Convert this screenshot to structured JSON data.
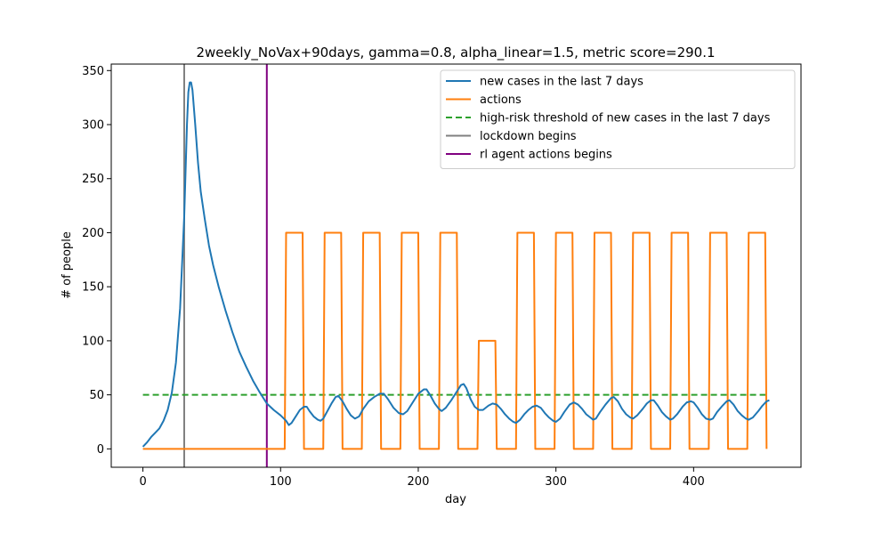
{
  "chart_data": {
    "type": "line",
    "title": "2weekly_NoVax+90days, gamma=0.8, alpha_linear=1.5, metric score=290.1",
    "xlabel": "day",
    "ylabel": "# of people",
    "xlim": [
      -23,
      478
    ],
    "ylim": [
      -17,
      356
    ],
    "xticks": [
      0,
      100,
      200,
      300,
      400
    ],
    "yticks": [
      0,
      50,
      100,
      150,
      200,
      250,
      300,
      350
    ],
    "grid": false,
    "legend_position": "upper-right",
    "series": [
      {
        "name": "new cases in the last 7 days",
        "color": "#1f77b4",
        "style": "solid",
        "points": [
          [
            0,
            2
          ],
          [
            3,
            6
          ],
          [
            6,
            11
          ],
          [
            9,
            15
          ],
          [
            12,
            19
          ],
          [
            15,
            26
          ],
          [
            18,
            36
          ],
          [
            21,
            52
          ],
          [
            24,
            80
          ],
          [
            27,
            130
          ],
          [
            30,
            215
          ],
          [
            32,
            300
          ],
          [
            33,
            330
          ],
          [
            34,
            339
          ],
          [
            35,
            339
          ],
          [
            36,
            332
          ],
          [
            38,
            300
          ],
          [
            40,
            265
          ],
          [
            42,
            238
          ],
          [
            45,
            212
          ],
          [
            48,
            188
          ],
          [
            51,
            170
          ],
          [
            55,
            150
          ],
          [
            60,
            128
          ],
          [
            65,
            108
          ],
          [
            70,
            90
          ],
          [
            75,
            76
          ],
          [
            80,
            63
          ],
          [
            85,
            52
          ],
          [
            90,
            42
          ],
          [
            95,
            36
          ],
          [
            100,
            31
          ],
          [
            104,
            26
          ],
          [
            106,
            22
          ],
          [
            108,
            24
          ],
          [
            111,
            30
          ],
          [
            114,
            36
          ],
          [
            117,
            39
          ],
          [
            119,
            39
          ],
          [
            121,
            35
          ],
          [
            124,
            30
          ],
          [
            127,
            27
          ],
          [
            129,
            26
          ],
          [
            131,
            28
          ],
          [
            134,
            35
          ],
          [
            137,
            42
          ],
          [
            140,
            48
          ],
          [
            142,
            49
          ],
          [
            145,
            44
          ],
          [
            148,
            37
          ],
          [
            151,
            31
          ],
          [
            154,
            28
          ],
          [
            157,
            30
          ],
          [
            160,
            37
          ],
          [
            164,
            44
          ],
          [
            168,
            48
          ],
          [
            172,
            51
          ],
          [
            175,
            51
          ],
          [
            178,
            46
          ],
          [
            182,
            38
          ],
          [
            186,
            33
          ],
          [
            189,
            32
          ],
          [
            192,
            35
          ],
          [
            196,
            43
          ],
          [
            200,
            51
          ],
          [
            204,
            55
          ],
          [
            206,
            55
          ],
          [
            209,
            49
          ],
          [
            212,
            42
          ],
          [
            215,
            37
          ],
          [
            217,
            35
          ],
          [
            220,
            38
          ],
          [
            224,
            45
          ],
          [
            228,
            53
          ],
          [
            231,
            59
          ],
          [
            233,
            60
          ],
          [
            235,
            56
          ],
          [
            238,
            46
          ],
          [
            241,
            39
          ],
          [
            244,
            36
          ],
          [
            247,
            36
          ],
          [
            251,
            40
          ],
          [
            254,
            42
          ],
          [
            257,
            41
          ],
          [
            260,
            37
          ],
          [
            263,
            32
          ],
          [
            266,
            28
          ],
          [
            269,
            25
          ],
          [
            271,
            24
          ],
          [
            274,
            27
          ],
          [
            277,
            32
          ],
          [
            280,
            36
          ],
          [
            283,
            39
          ],
          [
            286,
            40
          ],
          [
            289,
            38
          ],
          [
            292,
            33
          ],
          [
            295,
            29
          ],
          [
            298,
            26
          ],
          [
            300,
            25
          ],
          [
            303,
            28
          ],
          [
            306,
            34
          ],
          [
            310,
            41
          ],
          [
            313,
            43
          ],
          [
            316,
            41
          ],
          [
            319,
            37
          ],
          [
            322,
            32
          ],
          [
            325,
            29
          ],
          [
            327,
            27
          ],
          [
            329,
            28
          ],
          [
            332,
            34
          ],
          [
            336,
            41
          ],
          [
            340,
            47
          ],
          [
            342,
            48
          ],
          [
            345,
            44
          ],
          [
            348,
            37
          ],
          [
            351,
            32
          ],
          [
            354,
            29
          ],
          [
            356,
            28
          ],
          [
            359,
            31
          ],
          [
            363,
            37
          ],
          [
            366,
            42
          ],
          [
            369,
            45
          ],
          [
            371,
            45
          ],
          [
            374,
            40
          ],
          [
            377,
            34
          ],
          [
            380,
            30
          ],
          [
            383,
            27
          ],
          [
            385,
            28
          ],
          [
            388,
            32
          ],
          [
            392,
            39
          ],
          [
            395,
            43
          ],
          [
            398,
            44
          ],
          [
            400,
            43
          ],
          [
            403,
            38
          ],
          [
            406,
            32
          ],
          [
            409,
            28
          ],
          [
            412,
            27
          ],
          [
            414,
            28
          ],
          [
            417,
            34
          ],
          [
            421,
            40
          ],
          [
            424,
            44
          ],
          [
            426,
            45
          ],
          [
            429,
            41
          ],
          [
            432,
            35
          ],
          [
            435,
            31
          ],
          [
            438,
            28
          ],
          [
            440,
            27
          ],
          [
            443,
            29
          ],
          [
            447,
            35
          ],
          [
            450,
            40
          ],
          [
            453,
            44
          ],
          [
            455,
            45
          ]
        ]
      },
      {
        "name": "actions",
        "color": "#ff7f0e",
        "style": "solid",
        "points": [
          [
            0,
            0
          ],
          [
            103,
            0
          ],
          [
            104,
            200
          ],
          [
            116,
            200
          ],
          [
            117,
            0
          ],
          [
            131,
            0
          ],
          [
            132,
            200
          ],
          [
            144,
            200
          ],
          [
            145,
            0
          ],
          [
            159,
            0
          ],
          [
            160,
            200
          ],
          [
            172,
            200
          ],
          [
            173,
            0
          ],
          [
            187,
            0
          ],
          [
            188,
            200
          ],
          [
            200,
            200
          ],
          [
            201,
            0
          ],
          [
            215,
            0
          ],
          [
            216,
            200
          ],
          [
            228,
            200
          ],
          [
            229,
            0
          ],
          [
            243,
            0
          ],
          [
            244,
            100
          ],
          [
            256,
            100
          ],
          [
            257,
            0
          ],
          [
            271,
            0
          ],
          [
            272,
            200
          ],
          [
            284,
            200
          ],
          [
            285,
            0
          ],
          [
            299,
            0
          ],
          [
            300,
            200
          ],
          [
            312,
            200
          ],
          [
            313,
            0
          ],
          [
            327,
            0
          ],
          [
            328,
            200
          ],
          [
            340,
            200
          ],
          [
            341,
            0
          ],
          [
            355,
            0
          ],
          [
            356,
            200
          ],
          [
            368,
            200
          ],
          [
            369,
            0
          ],
          [
            383,
            0
          ],
          [
            384,
            200
          ],
          [
            396,
            200
          ],
          [
            397,
            0
          ],
          [
            411,
            0
          ],
          [
            412,
            200
          ],
          [
            424,
            200
          ],
          [
            425,
            0
          ],
          [
            439,
            0
          ],
          [
            440,
            200
          ],
          [
            452,
            200
          ],
          [
            453,
            0
          ]
        ]
      },
      {
        "name": "high-risk threshold of new cases in the last 7 days",
        "color": "#2ca02c",
        "style": "dashed",
        "points": [
          [
            0,
            50
          ],
          [
            455,
            50
          ]
        ]
      }
    ],
    "vlines": [
      {
        "name": "lockdown begins",
        "x": 30,
        "color": "#808080"
      },
      {
        "name": "rl agent actions begins",
        "x": 90,
        "color": "#800080"
      }
    ]
  }
}
